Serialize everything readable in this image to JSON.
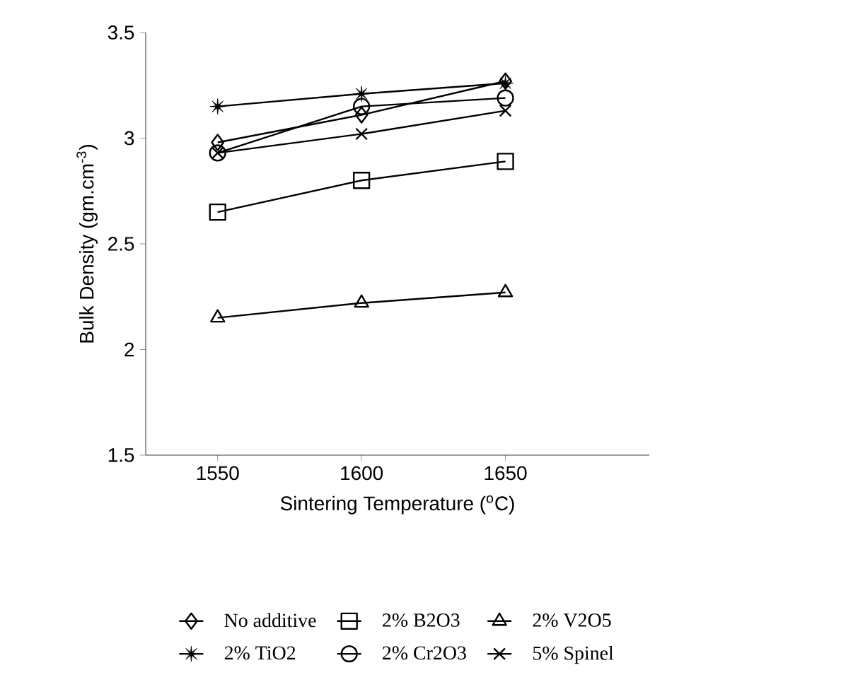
{
  "chart_data": {
    "type": "line",
    "xlabel": "Sintering Temperature ($^{o}$C)",
    "ylabel": "Bulk Density (gm.cm$^{-3}$)",
    "x": [
      1550,
      1600,
      1650
    ],
    "xlim": [
      1525,
      1700
    ],
    "ylim": [
      1.5,
      3.5
    ],
    "xticks": [
      1550,
      1600,
      1650
    ],
    "yticks": [
      1.5,
      2,
      2.5,
      3,
      3.5
    ],
    "grid": false,
    "legend": "bottom",
    "line_style": "solid",
    "series": [
      {
        "name": "No additive",
        "color": "#000000",
        "marker": "diamond",
        "values": [
          2.98,
          3.11,
          3.27
        ]
      },
      {
        "name": "2% B2O3",
        "color": "#000000",
        "marker": "square",
        "values": [
          2.65,
          2.8,
          2.89
        ]
      },
      {
        "name": "2% V2O5",
        "color": "#000000",
        "marker": "triangle",
        "values": [
          2.15,
          2.22,
          2.27
        ]
      },
      {
        "name": "2% TiO2",
        "color": "#000000",
        "marker": "star",
        "values": [
          3.15,
          3.21,
          3.26
        ]
      },
      {
        "name": "2% Cr2O3",
        "color": "#000000",
        "marker": "circle",
        "values": [
          2.93,
          3.15,
          3.19
        ]
      },
      {
        "name": "5% Spinel",
        "color": "#000000",
        "marker": "cross",
        "values": [
          2.93,
          3.02,
          3.13
        ]
      }
    ]
  }
}
